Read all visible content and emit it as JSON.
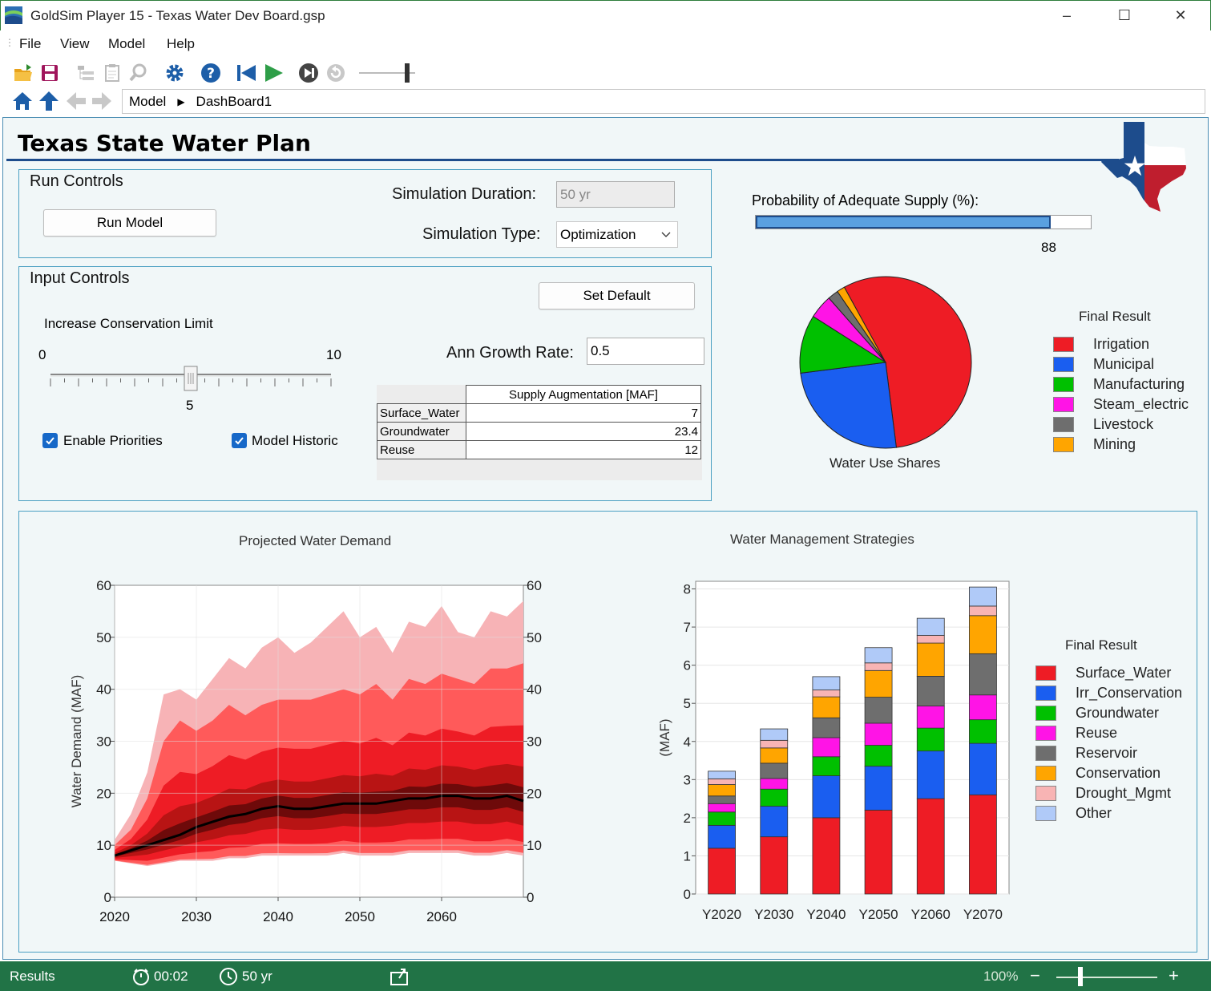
{
  "window": {
    "title": "GoldSim Player 15  - Texas Water Dev Board.gsp",
    "minimize": "–",
    "maximize": "☐",
    "close": "✕"
  },
  "menu": {
    "file": "File",
    "view": "View",
    "model": "Model",
    "help": "Help"
  },
  "breadcrumb": {
    "root": "Model",
    "current": "DashBoard1"
  },
  "dashboard": {
    "title": "Texas State Water Plan",
    "run_controls": {
      "title": "Run Controls",
      "run_button": "Run Model",
      "duration_label": "Simulation Duration:",
      "duration_value": "50 yr",
      "type_label": "Simulation Type:",
      "type_value": "Optimization"
    },
    "input_controls": {
      "title": "Input Controls",
      "set_default": "Set Default",
      "slider_label": "Increase Conservation Limit",
      "slider_min": "0",
      "slider_max": "10",
      "slider_value": "5",
      "slider_fraction": 0.5,
      "growth_label": "Ann Growth Rate:",
      "growth_value": "0.5",
      "enable_priorities": "Enable Priorities",
      "model_historic": "Model Historic",
      "table_header": "Supply Augmentation [MAF]",
      "table_rows": [
        {
          "name": "Surface_Water",
          "value": "7"
        },
        {
          "name": "Groundwater",
          "value": "23.4"
        },
        {
          "name": "Reuse",
          "value": "12"
        }
      ]
    },
    "probability": {
      "label": "Probability of Adequate Supply (%):",
      "value": "88",
      "percent": 88
    }
  },
  "charts": {
    "pie_title": "Water Use Shares",
    "pie_legend_title": "Final Result",
    "demand_title": "Projected Water Demand",
    "demand_ylabel": "Water Demand (MAF)",
    "y_ticks": [
      "0",
      "10",
      "20",
      "30",
      "40",
      "50",
      "60"
    ],
    "x_ticks": [
      "2020",
      "2030",
      "2040",
      "2050",
      "2060"
    ],
    "strategies_title": "Water Management Strategies",
    "strategies_ylabel": "(MAF)",
    "strategies_legend_title": "Final Result",
    "bar_y_ticks": [
      "0",
      "1",
      "2",
      "3",
      "4",
      "5",
      "6",
      "7",
      "8"
    ]
  },
  "status": {
    "left": "Results",
    "elapsed": "00:02",
    "sim_time": "50 yr",
    "zoom": "100%",
    "zoom_minus": "−",
    "zoom_plus": "+"
  },
  "colors": {
    "accent": "#217346",
    "title_rule": "#1d4c8c",
    "progress": "#5aa0e0"
  },
  "chart_data": [
    {
      "type": "pie",
      "title": "Water Use Shares",
      "legend_title": "Final Result",
      "categories": [
        "Irrigation",
        "Municipal",
        "Manufacturing",
        "Steam_electric",
        "Livestock",
        "Mining"
      ],
      "values": [
        56,
        25,
        11,
        4.5,
        2,
        1.5
      ],
      "colors": [
        "#ee1c25",
        "#1a5ef0",
        "#00c000",
        "#ff14e6",
        "#6e6e6e",
        "#ffa500"
      ]
    },
    {
      "type": "area",
      "title": "Projected Water Demand",
      "xlabel": "",
      "ylabel": "Water Demand (MAF)",
      "xlim": [
        2020,
        2070
      ],
      "ylim": [
        0,
        60
      ],
      "x": [
        2020,
        2022,
        2024,
        2026,
        2028,
        2030,
        2032,
        2034,
        2036,
        2038,
        2040,
        2042,
        2044,
        2046,
        2048,
        2050,
        2052,
        2054,
        2056,
        2058,
        2060,
        2062,
        2064,
        2066,
        2068,
        2070
      ],
      "series": [
        {
          "name": "median",
          "values": [
            8,
            9,
            10,
            11,
            12,
            13.5,
            14.5,
            15.5,
            16,
            17,
            17.5,
            17,
            17,
            17.5,
            18,
            18,
            18,
            18.5,
            19,
            19,
            19.5,
            19.5,
            19,
            19,
            19.5,
            18.5
          ]
        },
        {
          "name": "p95",
          "values": [
            10,
            13,
            19,
            30,
            34,
            32,
            34,
            37,
            35,
            37,
            38,
            38,
            38,
            39,
            40,
            39,
            41,
            38,
            42,
            41,
            43,
            42,
            41,
            44,
            44,
            45
          ]
        },
        {
          "name": "max",
          "values": [
            11,
            16,
            24,
            39,
            40,
            38,
            42,
            46,
            44,
            48,
            50,
            47,
            49,
            52,
            55,
            50,
            52,
            47,
            53,
            52,
            56,
            51,
            50,
            55,
            54,
            57
          ]
        },
        {
          "name": "min",
          "values": [
            7,
            6.5,
            6,
            6.5,
            7,
            7,
            7,
            7.5,
            7.5,
            8,
            8,
            8,
            8,
            8,
            8.5,
            8,
            8,
            8,
            8.5,
            8.5,
            8.5,
            8.5,
            8,
            8,
            8.5,
            8
          ]
        }
      ]
    },
    {
      "type": "bar",
      "stacked": true,
      "title": "Water Management Strategies",
      "ylabel": "(MAF)",
      "legend_title": "Final Result",
      "ylim": [
        0,
        8.2
      ],
      "categories": [
        "Y2020",
        "Y2030",
        "Y2040",
        "Y2050",
        "Y2060",
        "Y2070"
      ],
      "series": [
        {
          "name": "Surface_Water",
          "color": "#ee1c25",
          "values": [
            1.2,
            1.5,
            2.0,
            2.2,
            2.5,
            2.6
          ]
        },
        {
          "name": "Irr_Conservation",
          "color": "#1a5ef0",
          "values": [
            0.6,
            0.8,
            1.1,
            1.15,
            1.25,
            1.35
          ]
        },
        {
          "name": "Groundwater",
          "color": "#00c000",
          "values": [
            0.35,
            0.45,
            0.5,
            0.55,
            0.6,
            0.62
          ]
        },
        {
          "name": "Reuse",
          "color": "#ff14e6",
          "values": [
            0.22,
            0.28,
            0.5,
            0.58,
            0.58,
            0.65
          ]
        },
        {
          "name": "Reservoir",
          "color": "#6e6e6e",
          "values": [
            0.2,
            0.4,
            0.52,
            0.68,
            0.78,
            1.08
          ]
        },
        {
          "name": "Conservation",
          "color": "#ffa500",
          "values": [
            0.3,
            0.4,
            0.55,
            0.7,
            0.87,
            1.0
          ]
        },
        {
          "name": "Drought_Mgmt",
          "color": "#f8b4b4",
          "values": [
            0.15,
            0.2,
            0.18,
            0.2,
            0.2,
            0.25
          ]
        },
        {
          "name": "Other",
          "color": "#b0caf8",
          "values": [
            0.2,
            0.3,
            0.35,
            0.4,
            0.45,
            0.5
          ]
        }
      ]
    }
  ]
}
